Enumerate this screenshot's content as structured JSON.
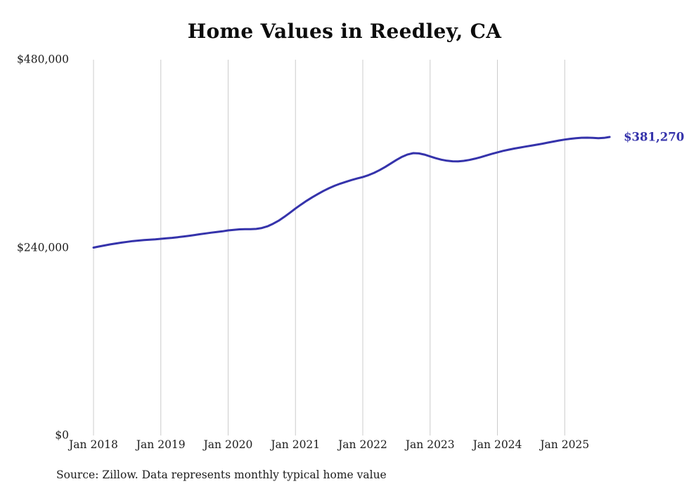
{
  "colors": {
    "line": "#3533ab",
    "grid": "#cccccc",
    "text": "#1c1c1c",
    "background": "#ffffff"
  },
  "chart_data": {
    "type": "line",
    "title": "Home Values in Reedley, CA",
    "source": "Source: Zillow. Data represents monthly typical home value",
    "end_label": "$381,270",
    "line_color": "#3533ab",
    "grid_color": "#cccccc",
    "x_start": "Jan 2018",
    "x_end": "Sep 2025",
    "frequency": "monthly",
    "xlabel": "",
    "ylabel": "",
    "ylim": [
      0,
      480000
    ],
    "grid": "vertical-only",
    "legend": "none",
    "xticks": [
      "Jan 2018",
      "Jan 2019",
      "Jan 2020",
      "Jan 2021",
      "Jan 2022",
      "Jan 2023",
      "Jan 2024",
      "Jan 2025"
    ],
    "yticks": [
      {
        "label": "$0",
        "value": 0
      },
      {
        "label": "$240,000",
        "value": 240000
      },
      {
        "label": "$480,000",
        "value": 480000
      }
    ],
    "values": [
      240000,
      241400,
      242800,
      244100,
      245300,
      246400,
      247400,
      248300,
      249000,
      249600,
      250100,
      250600,
      251200,
      251800,
      252500,
      253300,
      254200,
      255100,
      256100,
      257100,
      258100,
      259100,
      260000,
      260800,
      262000,
      262700,
      263300,
      263600,
      263500,
      263900,
      265000,
      267200,
      270400,
      274400,
      279200,
      284500,
      290000,
      295000,
      299800,
      304300,
      308500,
      312400,
      315900,
      319000,
      321700,
      324100,
      326300,
      328300,
      330100,
      332500,
      335500,
      339000,
      343000,
      347500,
      352000,
      356000,
      359000,
      360700,
      360300,
      358800,
      356500,
      354200,
      352300,
      351000,
      350300,
      350200,
      350800,
      352000,
      353600,
      355500,
      357600,
      359700,
      361700,
      363500,
      365100,
      366500,
      367800,
      369000,
      370200,
      371400,
      372700,
      374100,
      375500,
      376800,
      378000,
      379000,
      379800,
      380300,
      380400,
      380100,
      379700,
      380100,
      381270
    ]
  }
}
